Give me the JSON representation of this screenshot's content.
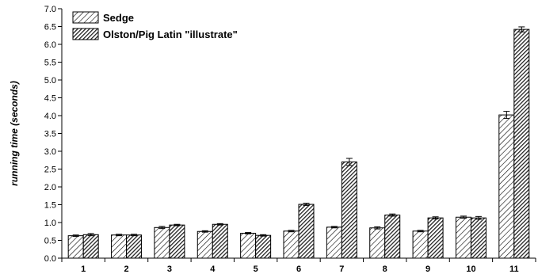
{
  "chart_data": {
    "type": "bar",
    "title": "",
    "xlabel": "",
    "ylabel": "running time (seconds)",
    "ylim": [
      0,
      7.0
    ],
    "yticks": [
      "0.0",
      "0.5",
      "1.0",
      "1.5",
      "2.0",
      "2.5",
      "3.0",
      "3.5",
      "4.0",
      "4.5",
      "5.0",
      "5.5",
      "6.0",
      "6.5",
      "7.0"
    ],
    "categories": [
      "1",
      "2",
      "3",
      "4",
      "5",
      "6",
      "7",
      "8",
      "9",
      "10",
      "11"
    ],
    "series": [
      {
        "name": "Sedge",
        "pattern": "light-hatch",
        "values": [
          0.63,
          0.65,
          0.86,
          0.75,
          0.7,
          0.76,
          0.87,
          0.85,
          0.76,
          1.15,
          4.02
        ],
        "errors": [
          0.02,
          0.02,
          0.03,
          0.02,
          0.02,
          0.02,
          0.02,
          0.03,
          0.02,
          0.03,
          0.1
        ]
      },
      {
        "name": "Olston/Pig Latin \"illustrate\"",
        "pattern": "dark-hatch",
        "values": [
          0.66,
          0.65,
          0.93,
          0.95,
          0.64,
          1.51,
          2.7,
          1.21,
          1.13,
          1.13,
          6.42
        ],
        "errors": [
          0.03,
          0.02,
          0.02,
          0.02,
          0.02,
          0.03,
          0.1,
          0.03,
          0.03,
          0.04,
          0.07
        ]
      }
    ],
    "legend_position": "top-left",
    "grid": false,
    "error_bars": true
  }
}
